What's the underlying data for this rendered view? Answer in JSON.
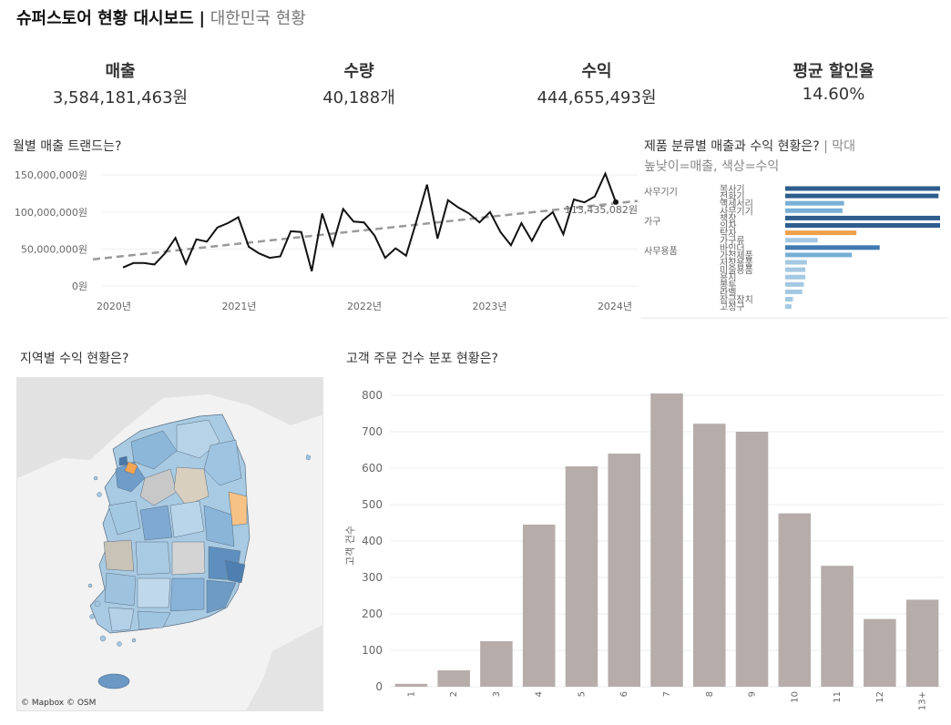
{
  "header": {
    "title": "슈퍼스토어 현황 대시보드",
    "separator": "|",
    "subtitle": "대한민국 현황"
  },
  "kpis": [
    {
      "label": "매출",
      "value": "3,584,181,463원"
    },
    {
      "label": "수량",
      "value": "40,188개"
    },
    {
      "label": "수익",
      "value": "444,655,493원"
    },
    {
      "label": "평균 할인율",
      "value": "14.60%"
    }
  ],
  "trend": {
    "title": "월별 매출 트랜드는?",
    "annotation": "113,435,082원",
    "chart_data": {
      "type": "line",
      "title": "월별 매출 트랜드는?",
      "y_ticks": [
        "150,000,000원",
        "100,000,000원",
        "50,000,000원",
        "0원"
      ],
      "y_tick_values": [
        150000000,
        100000000,
        50000000,
        0
      ],
      "x_ticks": [
        "2020년",
        "2021년",
        "2022년",
        "2023년",
        "2024년"
      ],
      "ylim": [
        0,
        165000000
      ],
      "series": [
        {
          "name": "매출",
          "values": [
            25000000,
            31000000,
            31000000,
            29000000,
            44000000,
            65000000,
            30000000,
            63000000,
            60000000,
            79000000,
            85000000,
            93000000,
            53000000,
            44000000,
            38000000,
            40000000,
            74000000,
            73000000,
            20000000,
            98000000,
            55000000,
            104000000,
            87000000,
            86000000,
            68000000,
            38000000,
            51000000,
            41000000,
            88000000,
            137000000,
            64000000,
            116000000,
            106000000,
            98000000,
            86000000,
            100000000,
            73000000,
            55000000,
            85000000,
            61000000,
            88000000,
            100000000,
            70000000,
            117000000,
            113000000,
            121000000,
            152000000,
            113435082
          ]
        }
      ],
      "trendline": {
        "start": 36000000,
        "end": 115000000
      }
    }
  },
  "category": {
    "title": "제품 분류별 매출과 수익 현황은?",
    "title_note": "| 막대",
    "subtitle": "높낮이=매출, 색상=수익",
    "chart_data": {
      "type": "bar",
      "groups": [
        "사무기기",
        "가구",
        "사무용품"
      ],
      "categories": [
        "복사기",
        "전화기",
        "액세서리",
        "사무기기",
        "책장",
        "의자",
        "탁자",
        "가구류",
        "바인더",
        "가전제품",
        "저장용품",
        "미술용품",
        "용지",
        "봉투",
        "라벨",
        "잠금장치",
        "고정구"
      ],
      "values": [
        100,
        99,
        38,
        37,
        100,
        100,
        46,
        21,
        61,
        43,
        14,
        13,
        13,
        12,
        11,
        5,
        4
      ],
      "profit_level": [
        "high",
        "high",
        "mid",
        "mid",
        "high",
        "high",
        "neg",
        "low",
        "midh",
        "mid",
        "low",
        "low",
        "low",
        "low",
        "low",
        "low",
        "low"
      ],
      "colors": {
        "high": "#2e5d8e",
        "midh": "#3f79b0",
        "mid": "#78afd6",
        "low": "#a3c8e2",
        "neg": "#f0a04b"
      }
    }
  },
  "map": {
    "title": "지역별 수익 현황은?",
    "attribution": "© Mapbox © OSM"
  },
  "histogram": {
    "title": "고객 주문 건수 분포 현황은?",
    "ylabel": "고객 건수",
    "chart_data": {
      "type": "bar",
      "title": "고객 주문 건수 분포 현황은?",
      "ylabel": "고객 건수",
      "categories": [
        "1",
        "2",
        "3",
        "4",
        "5",
        "6",
        "7",
        "8",
        "9",
        "10",
        "11",
        "12",
        "13+"
      ],
      "values": [
        8,
        45,
        125,
        445,
        605,
        640,
        805,
        722,
        700,
        476,
        332,
        186,
        239
      ],
      "ylim": [
        0,
        815
      ],
      "y_ticks": [
        "800",
        "700",
        "600",
        "500",
        "400",
        "300",
        "200",
        "100",
        "0"
      ],
      "y_tick_values": [
        800,
        700,
        600,
        500,
        400,
        300,
        200,
        100,
        0
      ],
      "bar_color": "#b6adaa"
    }
  }
}
